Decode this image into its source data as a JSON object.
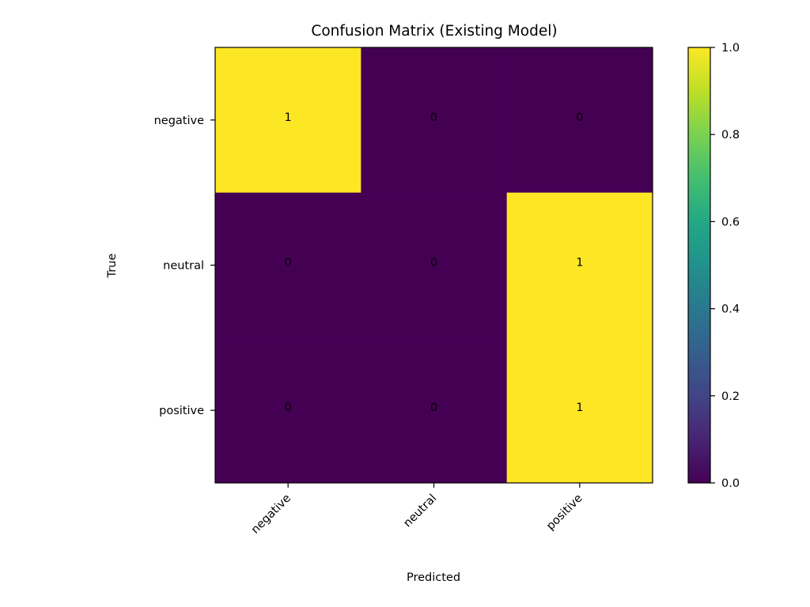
{
  "chart_data": {
    "type": "heatmap",
    "title": "Confusion Matrix (Existing Model)",
    "xlabel": "Predicted",
    "ylabel": "True",
    "x_categories": [
      "negative",
      "neutral",
      "positive"
    ],
    "y_categories": [
      "negative",
      "neutral",
      "positive"
    ],
    "values": [
      [
        1,
        0,
        0
      ],
      [
        0,
        0,
        1
      ],
      [
        0,
        0,
        1
      ]
    ],
    "cell_labels": [
      [
        "1",
        "0",
        "0"
      ],
      [
        "0",
        "0",
        "1"
      ],
      [
        "0",
        "0",
        "1"
      ]
    ],
    "colormap": "viridis",
    "color_low": "#440154",
    "color_high": "#fde725",
    "colorbar": {
      "range": [
        0.0,
        1.0
      ],
      "tick_labels": [
        "0.0",
        "0.2",
        "0.4",
        "0.6",
        "0.8",
        "1.0"
      ]
    },
    "x_tick_rotation": "45°",
    "legend": "colorbar right"
  }
}
